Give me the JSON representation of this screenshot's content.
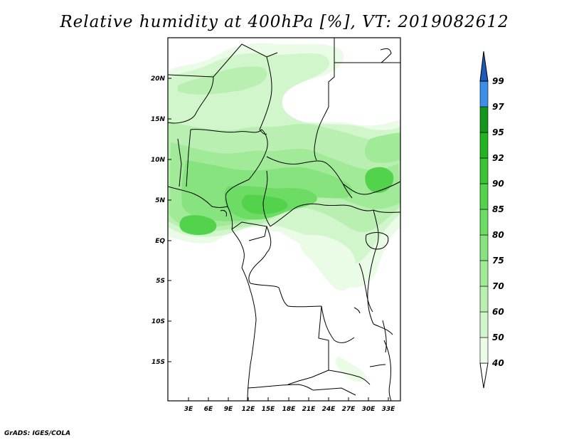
{
  "title": "Relative humidity at 400hPa [%], VT: 2019082612",
  "credit": "GrADS: IGES/COLA",
  "map": {
    "region": "Central Africa",
    "variable": "Relative humidity",
    "level": "400hPa",
    "valid_time": "2019082612",
    "lat_labels": [
      "20N",
      "15N",
      "10N",
      "5N",
      "EQ",
      "5S",
      "10S",
      "15S"
    ],
    "lon_labels": [
      "3E",
      "6E",
      "9E",
      "12E",
      "15E",
      "18E",
      "21E",
      "24E",
      "27E",
      "30E",
      "33E"
    ]
  },
  "colorbar": {
    "levels": [
      "40",
      "50",
      "60",
      "70",
      "75",
      "80",
      "85",
      "90",
      "92",
      "95",
      "97",
      "99"
    ],
    "colors": [
      "#eafbe6",
      "#d2f6cb",
      "#b9f0b2",
      "#a0ea98",
      "#86e37e",
      "#6ddc65",
      "#53d24c",
      "#38c534",
      "#22b322",
      "#12961c",
      "#3b8fe8",
      "#2171d6",
      "#1e5ab8"
    ],
    "end_low_color": "#ffffff"
  }
}
